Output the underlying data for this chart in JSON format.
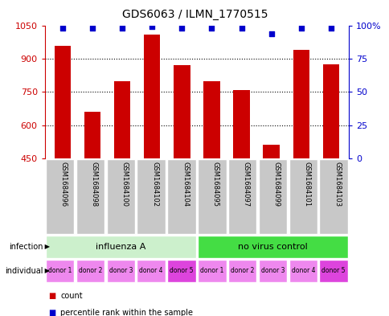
{
  "title": "GDS6063 / ILMN_1770515",
  "samples": [
    "GSM1684096",
    "GSM1684098",
    "GSM1684100",
    "GSM1684102",
    "GSM1684104",
    "GSM1684095",
    "GSM1684097",
    "GSM1684099",
    "GSM1684101",
    "GSM1684103"
  ],
  "counts": [
    960,
    660,
    800,
    1010,
    870,
    800,
    757,
    510,
    940,
    875
  ],
  "percentiles": [
    98,
    98,
    98,
    99,
    98,
    98,
    98,
    94,
    98,
    98
  ],
  "ymin": 450,
  "ymax": 1050,
  "yticks_left": [
    450,
    600,
    750,
    900,
    1050
  ],
  "yticks_right": [
    0,
    25,
    50,
    75,
    100
  ],
  "grid_lines": [
    600,
    750,
    900
  ],
  "infection_groups": [
    {
      "label": "influenza A",
      "start": 0,
      "end": 5,
      "color": "#ccf0cc"
    },
    {
      "label": "no virus control",
      "start": 5,
      "end": 10,
      "color": "#44dd44"
    }
  ],
  "individual_labels": [
    "donor 1",
    "donor 2",
    "donor 3",
    "donor 4",
    "donor 5",
    "donor 1",
    "donor 2",
    "donor 3",
    "donor 4",
    "donor 5"
  ],
  "individual_colors": [
    "#ee88ee",
    "#ee88ee",
    "#ee88ee",
    "#ee88ee",
    "#dd44dd",
    "#ee88ee",
    "#ee88ee",
    "#ee88ee",
    "#ee88ee",
    "#dd44dd"
  ],
  "bar_color": "#cc0000",
  "dot_color": "#0000cc",
  "sample_bg_color": "#c8c8c8",
  "infection_row_label": "infection",
  "individual_row_label": "individual",
  "legend_count_color": "#cc0000",
  "legend_dot_color": "#0000cc"
}
